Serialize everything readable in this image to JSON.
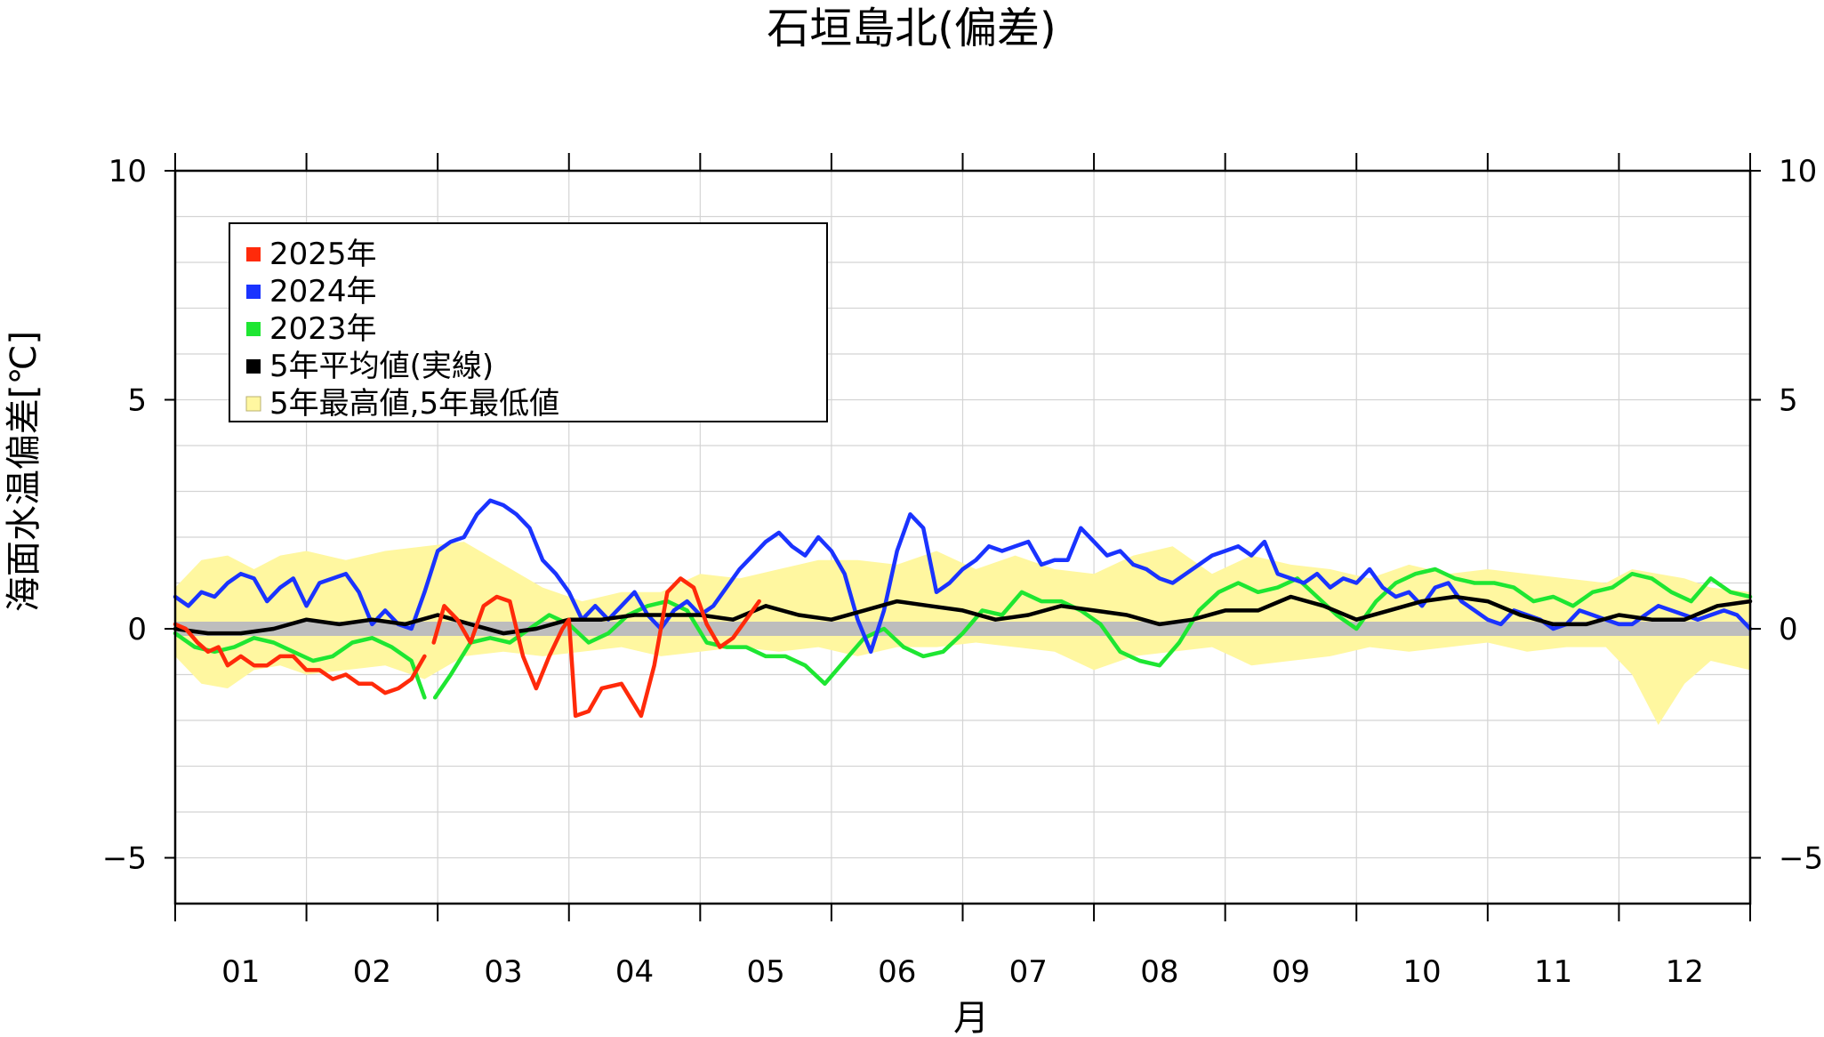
{
  "chart_data": {
    "type": "line",
    "title": "石垣島北(偏差)",
    "xlabel": "月",
    "ylabel": "海面水温偏差[℃]",
    "xlim": [
      0,
      12
    ],
    "ylim": [
      -6,
      10
    ],
    "yticks": [
      -5,
      0,
      5,
      10
    ],
    "ytick_labels": [
      "−5",
      "0",
      "5",
      "10"
    ],
    "months": [
      "01",
      "02",
      "03",
      "04",
      "05",
      "06",
      "07",
      "08",
      "09",
      "10",
      "11",
      "12"
    ],
    "grid": true,
    "legend_position": "top-left",
    "legend": [
      {
        "label": "2025年",
        "color": "#ff2a0a",
        "kind": "line"
      },
      {
        "label": "2024年",
        "color": "#1a33ff",
        "kind": "line"
      },
      {
        "label": "2023年",
        "color": "#1ee632",
        "kind": "line"
      },
      {
        "label": "5年平均値(実線)",
        "color": "#000000",
        "kind": "line"
      },
      {
        "label": "5年最高値,5年最低値",
        "color": "#fff7a0",
        "kind": "band"
      }
    ],
    "band": {
      "x": [
        0,
        0.2,
        0.4,
        0.6,
        0.8,
        1.0,
        1.3,
        1.6,
        1.9,
        2.2,
        2.5,
        2.8,
        3.1,
        3.4,
        3.7,
        4.0,
        4.3,
        4.6,
        4.9,
        5.2,
        5.5,
        5.8,
        6.1,
        6.4,
        6.7,
        7.0,
        7.3,
        7.6,
        7.9,
        8.2,
        8.5,
        8.8,
        9.1,
        9.4,
        9.7,
        10.0,
        10.3,
        10.6,
        10.9,
        11.1,
        11.3,
        11.5,
        11.7,
        12
      ],
      "upper": [
        0.9,
        1.5,
        1.6,
        1.3,
        1.6,
        1.7,
        1.5,
        1.7,
        1.8,
        1.9,
        1.4,
        0.9,
        0.6,
        0.8,
        0.8,
        1.2,
        1.1,
        1.3,
        1.5,
        1.5,
        1.4,
        1.7,
        1.3,
        1.6,
        1.3,
        1.2,
        1.6,
        1.8,
        1.2,
        1.6,
        1.4,
        1.3,
        1.1,
        1.4,
        1.2,
        1.3,
        1.2,
        1.1,
        1.0,
        1.3,
        1.2,
        1.1,
        0.9,
        0.8
      ],
      "lower": [
        -0.6,
        -1.2,
        -1.3,
        -0.9,
        -0.8,
        -1.0,
        -0.9,
        -0.8,
        -1.1,
        -0.6,
        -0.5,
        -0.6,
        -0.5,
        -0.4,
        -0.6,
        -0.5,
        -0.4,
        -0.5,
        -0.4,
        -0.6,
        -0.4,
        -0.4,
        -0.3,
        -0.4,
        -0.5,
        -0.9,
        -0.6,
        -0.5,
        -0.4,
        -0.8,
        -0.7,
        -0.6,
        -0.4,
        -0.5,
        -0.4,
        -0.3,
        -0.5,
        -0.4,
        -0.4,
        -1.0,
        -2.1,
        -1.2,
        -0.7,
        -0.9
      ]
    },
    "series": [
      {
        "name": "2025年",
        "color": "#ff2a0a",
        "segments": [
          {
            "x": [
              0,
              0.08,
              0.17,
              0.25,
              0.33,
              0.4,
              0.5,
              0.6,
              0.7,
              0.8,
              0.9,
              1.0,
              1.1,
              1.2,
              1.3,
              1.4,
              1.5,
              1.6,
              1.7,
              1.8,
              1.9
            ],
            "y": [
              0.1,
              0.0,
              -0.3,
              -0.5,
              -0.4,
              -0.8,
              -0.6,
              -0.8,
              -0.8,
              -0.6,
              -0.6,
              -0.9,
              -0.9,
              -1.1,
              -1.0,
              -1.2,
              -1.2,
              -1.4,
              -1.3,
              -1.1,
              -0.6
            ]
          },
          {
            "x": [
              1.97,
              2.05,
              2.15,
              2.25,
              2.35,
              2.45,
              2.55,
              2.65,
              2.75,
              2.85,
              2.95,
              3.0,
              3.05,
              3.15,
              3.25,
              3.4,
              3.55,
              3.65,
              3.75,
              3.85,
              3.95,
              4.05,
              4.15,
              4.25,
              4.35,
              4.45
            ],
            "y": [
              -0.3,
              0.5,
              0.2,
              -0.3,
              0.5,
              0.7,
              0.6,
              -0.6,
              -1.3,
              -0.6,
              0.0,
              0.2,
              -1.9,
              -1.8,
              -1.3,
              -1.2,
              -1.9,
              -0.8,
              0.8,
              1.1,
              0.9,
              0.1,
              -0.4,
              -0.2,
              0.2,
              0.6
            ]
          }
        ]
      },
      {
        "name": "2024年",
        "color": "#1a33ff",
        "segments": [
          {
            "x": [
              0,
              0.1,
              0.2,
              0.3,
              0.4,
              0.5,
              0.6,
              0.7,
              0.8,
              0.9,
              1.0,
              1.1,
              1.2,
              1.3,
              1.4,
              1.5,
              1.6,
              1.7,
              1.8,
              1.9,
              2.0,
              2.1,
              2.2,
              2.3,
              2.4,
              2.5,
              2.6,
              2.7,
              2.8,
              2.9,
              3.0,
              3.1,
              3.2,
              3.3,
              3.4,
              3.5,
              3.6,
              3.7,
              3.8,
              3.9,
              4.0,
              4.1,
              4.2,
              4.3,
              4.4,
              4.5,
              4.6,
              4.7,
              4.8,
              4.9,
              5.0,
              5.1,
              5.2,
              5.3,
              5.4,
              5.5,
              5.6,
              5.7,
              5.8,
              5.9,
              6.0,
              6.1,
              6.2,
              6.3,
              6.4,
              6.5,
              6.6,
              6.7,
              6.8,
              6.9,
              7.0,
              7.1,
              7.2,
              7.3,
              7.4,
              7.5,
              7.6,
              7.7,
              7.8,
              7.9,
              8.0,
              8.1,
              8.2,
              8.3,
              8.4,
              8.5,
              8.6,
              8.7,
              8.8,
              8.9,
              9.0,
              9.1,
              9.2,
              9.3,
              9.4,
              9.5,
              9.6,
              9.7,
              9.8,
              9.9,
              10.0,
              10.1,
              10.2,
              10.3,
              10.4,
              10.5,
              10.6,
              10.7,
              10.8,
              10.9,
              11.0,
              11.1,
              11.2,
              11.3,
              11.4,
              11.5,
              11.6,
              11.7,
              11.8,
              11.9,
              12.0
            ],
            "y": [
              0.7,
              0.5,
              0.8,
              0.7,
              1.0,
              1.2,
              1.1,
              0.6,
              0.9,
              1.1,
              0.5,
              1.0,
              1.1,
              1.2,
              0.8,
              0.1,
              0.4,
              0.1,
              0.0,
              0.8,
              1.7,
              1.9,
              2.0,
              2.5,
              2.8,
              2.7,
              2.5,
              2.2,
              1.5,
              1.2,
              0.8,
              0.2,
              0.5,
              0.2,
              0.5,
              0.8,
              0.3,
              0.0,
              0.4,
              0.6,
              0.3,
              0.5,
              0.9,
              1.3,
              1.6,
              1.9,
              2.1,
              1.8,
              1.6,
              2.0,
              1.7,
              1.2,
              0.2,
              -0.5,
              0.4,
              1.7,
              2.5,
              2.2,
              0.8,
              1.0,
              1.3,
              1.5,
              1.8,
              1.7,
              1.8,
              1.9,
              1.4,
              1.5,
              1.5,
              2.2,
              1.9,
              1.6,
              1.7,
              1.4,
              1.3,
              1.1,
              1.0,
              1.2,
              1.4,
              1.6,
              1.7,
              1.8,
              1.6,
              1.9,
              1.2,
              1.1,
              1.0,
              1.2,
              0.9,
              1.1,
              1.0,
              1.3,
              0.9,
              0.7,
              0.8,
              0.5,
              0.9,
              1.0,
              0.6,
              0.4,
              0.2,
              0.1,
              0.4,
              0.3,
              0.2,
              0.0,
              0.1,
              0.4,
              0.3,
              0.2,
              0.1,
              0.1,
              0.3,
              0.5,
              0.4,
              0.3,
              0.2,
              0.3,
              0.4,
              0.3,
              0.0
            ]
          }
        ]
      },
      {
        "name": "2023年",
        "color": "#1ee632",
        "segments": [
          {
            "x": [
              0,
              0.15,
              0.3,
              0.45,
              0.6,
              0.75,
              0.9,
              1.05,
              1.2,
              1.35,
              1.5,
              1.65,
              1.8,
              1.9
            ],
            "y": [
              -0.1,
              -0.4,
              -0.5,
              -0.4,
              -0.2,
              -0.3,
              -0.5,
              -0.7,
              -0.6,
              -0.3,
              -0.2,
              -0.4,
              -0.7,
              -1.5
            ]
          },
          {
            "x": [
              1.98,
              2.1,
              2.25,
              2.4,
              2.55,
              2.7,
              2.85,
              3.0,
              3.15,
              3.3,
              3.45,
              3.6,
              3.75,
              3.9,
              4.05,
              4.2,
              4.35,
              4.5,
              4.65,
              4.8,
              4.95,
              5.1,
              5.25,
              5.4,
              5.55,
              5.7,
              5.85,
              6.0,
              6.15,
              6.3,
              6.45,
              6.6,
              6.75,
              6.9,
              7.05,
              7.2,
              7.35,
              7.5,
              7.65,
              7.8,
              7.95,
              8.1,
              8.25,
              8.4,
              8.55,
              8.7,
              8.85,
              9.0,
              9.15,
              9.3,
              9.45,
              9.6,
              9.75,
              9.9,
              10.05,
              10.2,
              10.35,
              10.5,
              10.65,
              10.8,
              10.95,
              11.1,
              11.25,
              11.4,
              11.55,
              11.7,
              11.85,
              12.0
            ],
            "y": [
              -1.5,
              -1.0,
              -0.3,
              -0.2,
              -0.3,
              0.0,
              0.3,
              0.1,
              -0.3,
              -0.1,
              0.3,
              0.5,
              0.6,
              0.4,
              -0.3,
              -0.4,
              -0.4,
              -0.6,
              -0.6,
              -0.8,
              -1.2,
              -0.7,
              -0.2,
              0.0,
              -0.4,
              -0.6,
              -0.5,
              -0.1,
              0.4,
              0.3,
              0.8,
              0.6,
              0.6,
              0.4,
              0.1,
              -0.5,
              -0.7,
              -0.8,
              -0.3,
              0.4,
              0.8,
              1.0,
              0.8,
              0.9,
              1.1,
              0.7,
              0.3,
              0.0,
              0.6,
              1.0,
              1.2,
              1.3,
              1.1,
              1.0,
              1.0,
              0.9,
              0.6,
              0.7,
              0.5,
              0.8,
              0.9,
              1.2,
              1.1,
              0.8,
              0.6,
              1.1,
              0.8,
              0.7
            ]
          }
        ]
      },
      {
        "name": "5年平均値(実線)",
        "color": "#000000",
        "segments": [
          {
            "x": [
              0,
              0.25,
              0.5,
              0.75,
              1.0,
              1.25,
              1.5,
              1.75,
              2.0,
              2.25,
              2.5,
              2.75,
              3.0,
              3.25,
              3.5,
              3.75,
              4.0,
              4.25,
              4.5,
              4.75,
              5.0,
              5.25,
              5.5,
              5.75,
              6.0,
              6.25,
              6.5,
              6.75,
              7.0,
              7.25,
              7.5,
              7.75,
              8.0,
              8.25,
              8.5,
              8.75,
              9.0,
              9.25,
              9.5,
              9.75,
              10.0,
              10.25,
              10.5,
              10.75,
              11.0,
              11.25,
              11.5,
              11.75,
              12.0
            ],
            "y": [
              0.0,
              -0.1,
              -0.1,
              0.0,
              0.2,
              0.1,
              0.2,
              0.1,
              0.3,
              0.1,
              -0.1,
              0.0,
              0.2,
              0.2,
              0.3,
              0.3,
              0.3,
              0.2,
              0.5,
              0.3,
              0.2,
              0.4,
              0.6,
              0.5,
              0.4,
              0.2,
              0.3,
              0.5,
              0.4,
              0.3,
              0.1,
              0.2,
              0.4,
              0.4,
              0.7,
              0.5,
              0.2,
              0.4,
              0.6,
              0.7,
              0.6,
              0.3,
              0.1,
              0.1,
              0.3,
              0.2,
              0.2,
              0.5,
              0.6
            ]
          }
        ]
      }
    ]
  }
}
